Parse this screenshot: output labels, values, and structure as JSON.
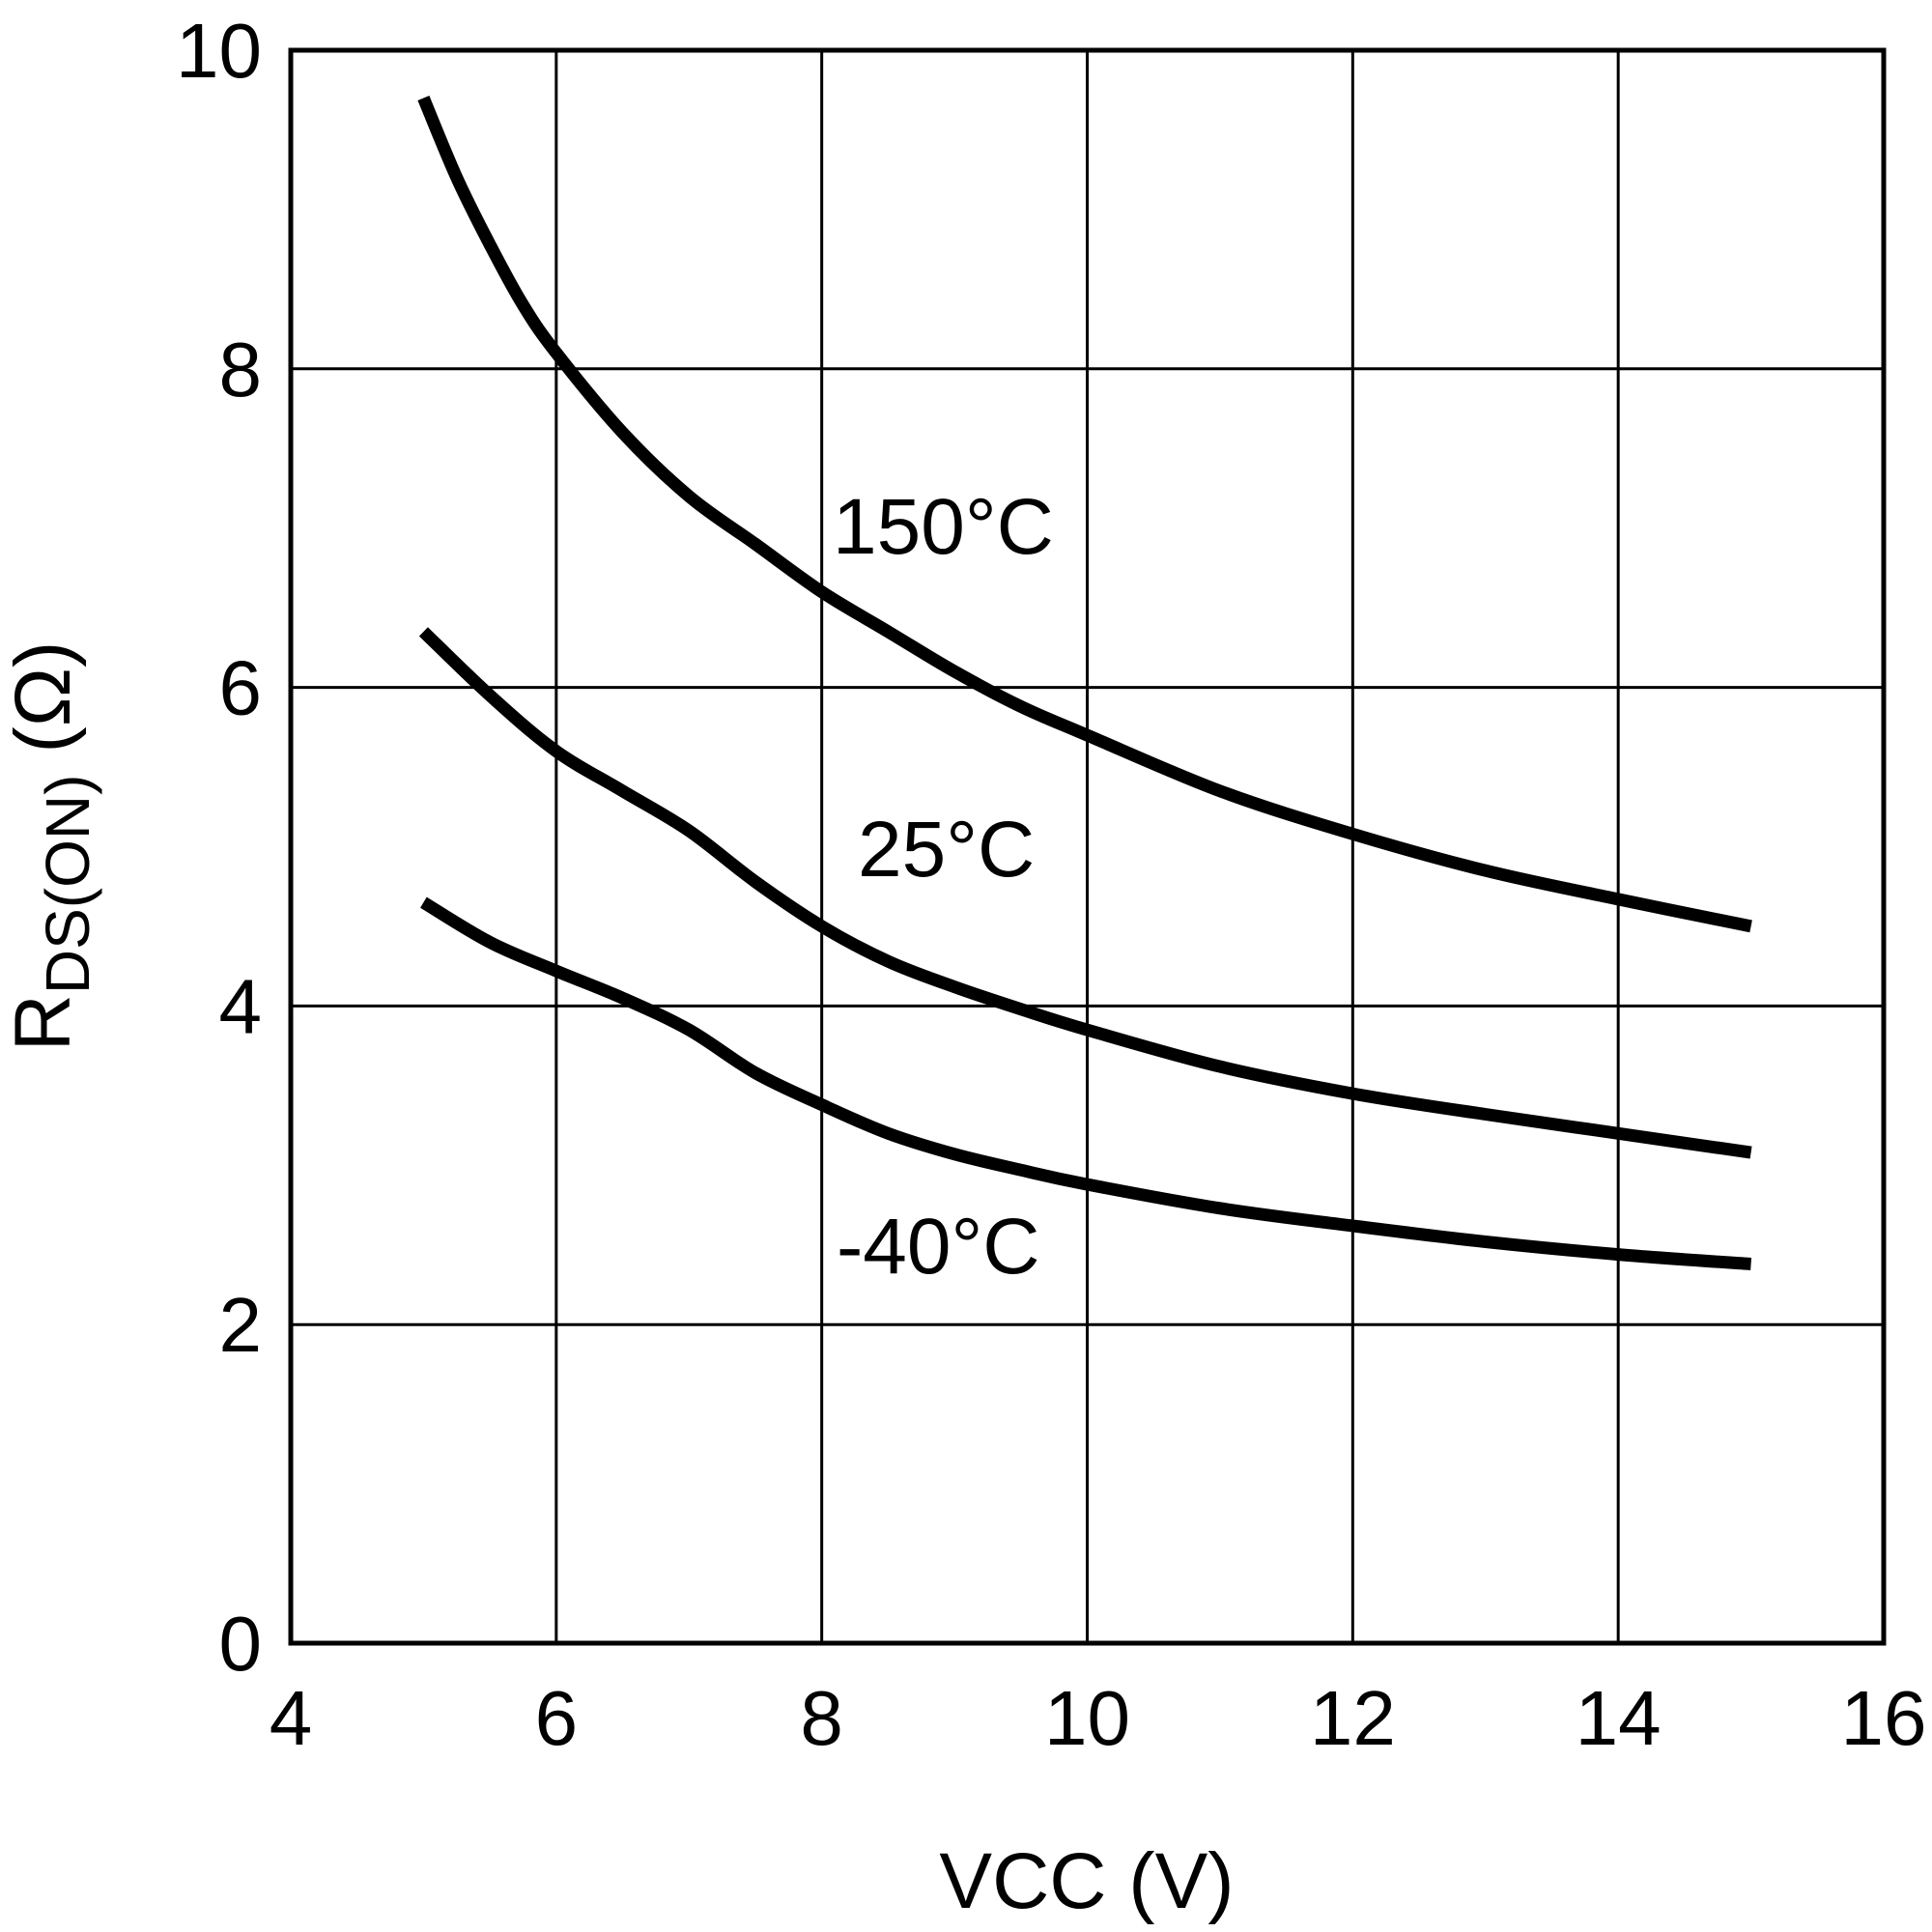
{
  "chart_data": {
    "type": "line",
    "title": "",
    "xlabel": "VCC (V)",
    "ylabel": {
      "main": "R",
      "subscript": "DS(ON)",
      "unit": "(Ω)"
    },
    "xlim": [
      4,
      16
    ],
    "ylim": [
      0,
      10
    ],
    "xticks": [
      4,
      6,
      8,
      10,
      12,
      14,
      16
    ],
    "yticks": [
      0,
      2,
      4,
      6,
      8,
      10
    ],
    "grid": true,
    "legend": "inline labels",
    "series": [
      {
        "name": "150°C",
        "x": [
          5.0,
          5.25,
          5.5,
          5.75,
          6.0,
          6.5,
          7.0,
          7.5,
          8.0,
          8.5,
          9.0,
          9.5,
          10.0,
          11.0,
          12.0,
          13.0,
          14.0,
          15.0
        ],
        "y": [
          9.7,
          9.2,
          8.78,
          8.4,
          8.1,
          7.6,
          7.2,
          6.9,
          6.6,
          6.35,
          6.1,
          5.88,
          5.7,
          5.35,
          5.08,
          4.85,
          4.67,
          4.5
        ]
      },
      {
        "name": "25°C",
        "x": [
          5.0,
          5.5,
          6.0,
          6.5,
          7.0,
          7.5,
          8.0,
          8.5,
          9.0,
          9.5,
          10.0,
          11.0,
          12.0,
          13.0,
          14.0,
          15.0
        ],
        "y": [
          6.35,
          5.95,
          5.6,
          5.35,
          5.1,
          4.78,
          4.5,
          4.28,
          4.12,
          3.98,
          3.85,
          3.62,
          3.45,
          3.32,
          3.2,
          3.08
        ]
      },
      {
        "name": "-40°C",
        "x": [
          5.0,
          5.5,
          6.0,
          6.5,
          7.0,
          7.5,
          8.0,
          8.5,
          9.0,
          9.5,
          10.0,
          11.0,
          12.0,
          13.0,
          14.0,
          15.0
        ],
        "y": [
          4.65,
          4.4,
          4.22,
          4.05,
          3.85,
          3.58,
          3.38,
          3.2,
          3.07,
          2.97,
          2.88,
          2.73,
          2.62,
          2.52,
          2.44,
          2.38
        ]
      }
    ]
  }
}
